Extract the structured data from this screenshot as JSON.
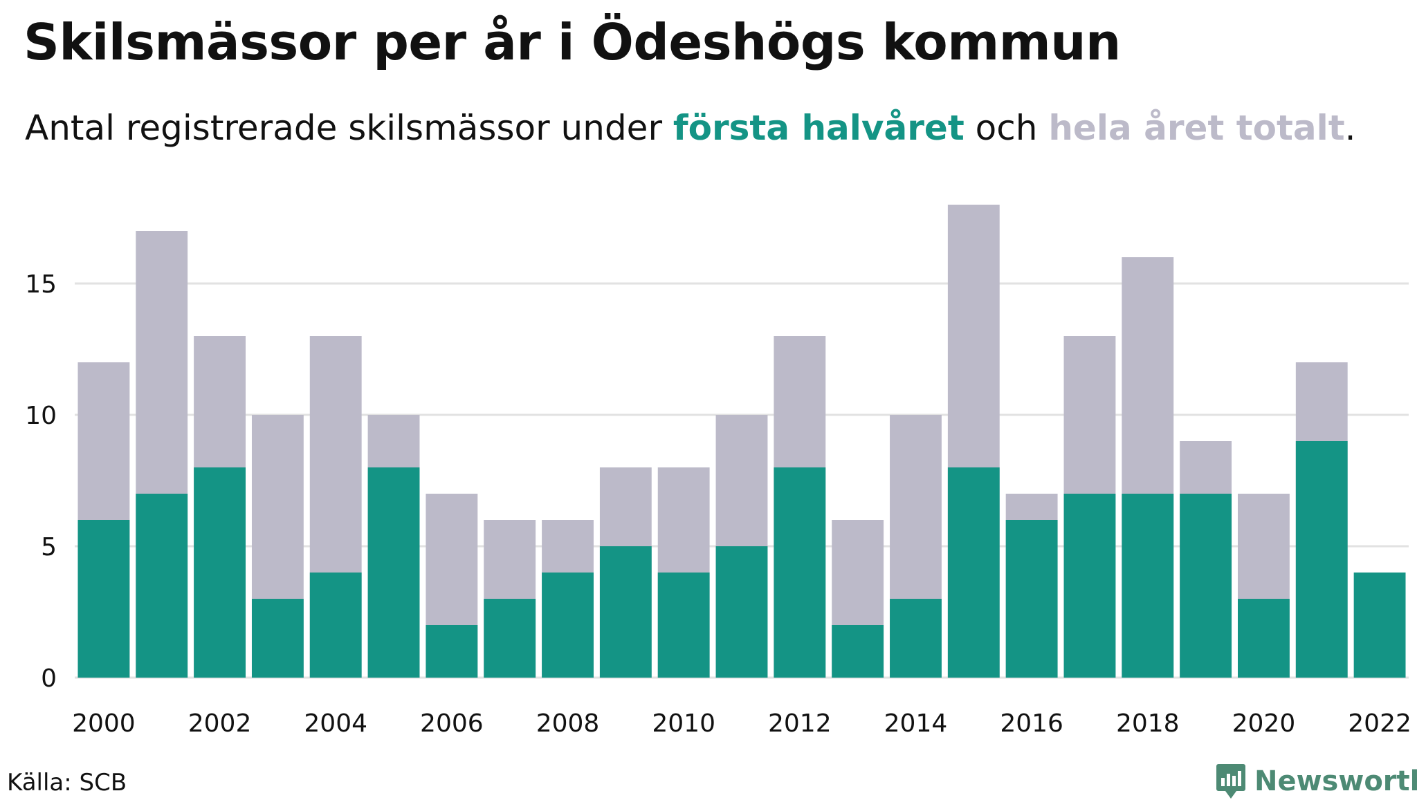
{
  "title": "Skilsmässor per år i Ödeshögs kommun",
  "subtitle": {
    "prefix": "Antal registrerade skilsmässor under ",
    "first_half": "första halvåret",
    "middle": " och ",
    "total": "hela året totalt",
    "suffix": "."
  },
  "colors": {
    "first_half": "#149485",
    "total": "#bcbac9",
    "grid": "#e2e2e2",
    "text": "#111111",
    "brand": "#4d8a74"
  },
  "source": "Källa: SCB",
  "brand": {
    "name": "Newsworthy",
    "icon": "newsworthy-logo-icon"
  },
  "chart_data": {
    "type": "bar",
    "stacked": "overlay",
    "x": [
      2000,
      2001,
      2002,
      2003,
      2004,
      2005,
      2006,
      2007,
      2008,
      2009,
      2010,
      2011,
      2012,
      2013,
      2014,
      2015,
      2016,
      2017,
      2018,
      2019,
      2020,
      2021,
      2022
    ],
    "series": [
      {
        "name": "hela året totalt",
        "values": [
          12,
          17,
          13,
          10,
          13,
          10,
          7,
          6,
          6,
          8,
          8,
          10,
          13,
          6,
          10,
          18,
          7,
          13,
          16,
          9,
          7,
          12,
          null
        ]
      },
      {
        "name": "första halvåret",
        "values": [
          6,
          7,
          8,
          3,
          4,
          8,
          2,
          3,
          4,
          5,
          4,
          5,
          8,
          2,
          3,
          8,
          6,
          7,
          7,
          7,
          3,
          9,
          4
        ]
      }
    ],
    "x_tick_labels": [
      "2000",
      "2002",
      "2004",
      "2006",
      "2008",
      "2010",
      "2012",
      "2014",
      "2016",
      "2018",
      "2020",
      "2022"
    ],
    "y_tick_labels": [
      "0",
      "5",
      "10",
      "15"
    ],
    "y_ticks": [
      0,
      5,
      10,
      15
    ],
    "ylim": [
      0,
      18
    ],
    "grid": true,
    "xlabel": "",
    "ylabel": ""
  }
}
